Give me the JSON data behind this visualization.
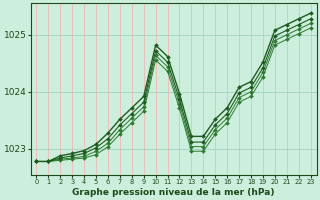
{
  "xlabel": "Graphe pression niveau de la mer (hPa)",
  "x": [
    0,
    1,
    2,
    3,
    4,
    5,
    6,
    7,
    8,
    9,
    10,
    11,
    12,
    13,
    14,
    15,
    16,
    17,
    18,
    19,
    20,
    21,
    22,
    23
  ],
  "line1": [
    1022.78,
    1022.78,
    1022.88,
    1022.92,
    1022.97,
    1023.08,
    1023.28,
    1023.52,
    1023.72,
    1023.92,
    1024.82,
    1024.62,
    1023.97,
    1023.22,
    1023.22,
    1023.52,
    1023.72,
    1024.08,
    1024.18,
    1024.52,
    1025.08,
    1025.18,
    1025.28,
    1025.38
  ],
  "line2": [
    1022.78,
    1022.78,
    1022.84,
    1022.88,
    1022.92,
    1023.02,
    1023.18,
    1023.42,
    1023.62,
    1023.82,
    1024.72,
    1024.52,
    1023.87,
    1023.12,
    1023.12,
    1023.42,
    1023.62,
    1023.98,
    1024.08,
    1024.42,
    1024.98,
    1025.08,
    1025.18,
    1025.28
  ],
  "line3": [
    1022.78,
    1022.78,
    1022.82,
    1022.84,
    1022.87,
    1022.96,
    1023.1,
    1023.34,
    1023.54,
    1023.74,
    1024.64,
    1024.44,
    1023.79,
    1023.04,
    1023.04,
    1023.34,
    1023.54,
    1023.9,
    1024.0,
    1024.34,
    1024.9,
    1025.0,
    1025.1,
    1025.2
  ],
  "line4": [
    1022.78,
    1022.78,
    1022.8,
    1022.82,
    1022.84,
    1022.9,
    1023.04,
    1023.26,
    1023.46,
    1023.66,
    1024.56,
    1024.36,
    1023.71,
    1022.96,
    1022.96,
    1023.26,
    1023.46,
    1023.82,
    1023.92,
    1024.26,
    1024.82,
    1024.92,
    1025.02,
    1025.12
  ],
  "line_color_dark": "#1e5c1e",
  "line_color_mid": "#2d7a2d",
  "bg_color": "#cceedd",
  "grid_color_h": "#99ccbb",
  "grid_color_v": "#ffaaaa",
  "tick_color": "#1a4a1a",
  "ylim": [
    1022.55,
    1025.55
  ],
  "yticks": [
    1023,
    1024,
    1025
  ],
  "xticks": [
    0,
    1,
    2,
    3,
    4,
    5,
    6,
    7,
    8,
    9,
    10,
    11,
    12,
    13,
    14,
    15,
    16,
    17,
    18,
    19,
    20,
    21,
    22,
    23
  ]
}
